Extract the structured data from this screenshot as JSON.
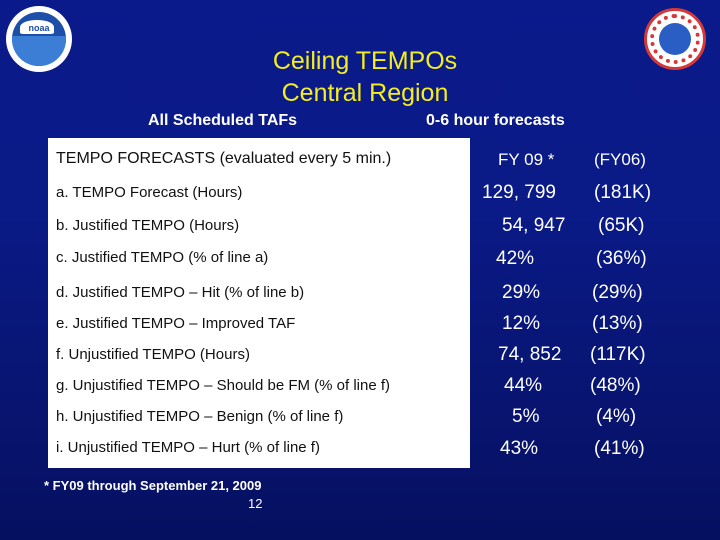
{
  "title": {
    "line1": "Ceiling TEMPOs",
    "line2": "Central Region"
  },
  "subtitle": {
    "left": "All Scheduled TAFs",
    "right": "0-6 hour forecasts"
  },
  "table": {
    "header": {
      "label": "TEMPO FORECASTS (evaluated every 5 min.)",
      "col1": "FY 09 *",
      "col2": "(FY06)"
    },
    "rows": [
      {
        "label": "a.  TEMPO Forecast (Hours)",
        "col1": "129, 799",
        "col2": "(181K)"
      },
      {
        "label": "b.  Justified TEMPO (Hours)",
        "col1": "54, 947",
        "col2": "(65K)"
      },
      {
        "label": "c.  Justified TEMPO (% of line a)",
        "col1": "42%",
        "col2": "(36%)"
      },
      {
        "label": "d.  Justified TEMPO – Hit (% of line b)",
        "col1": "29%",
        "col2": "(29%)"
      },
      {
        "label": "e.  Justified TEMPO – Improved TAF",
        "col1": "12%",
        "col2": "(13%)"
      },
      {
        "label": "f.  Unjustified TEMPO   (Hours)",
        "col1": "74, 852",
        "col2": "(117K)"
      },
      {
        "label": "g.  Unjustified TEMPO – Should be FM  (% of line f)",
        "col1": "44%",
        "col2": "(48%)"
      },
      {
        "label": "h.  Unjustified TEMPO – Benign  (% of line f)",
        "col1": "5%",
        "col2": "(4%)"
      },
      {
        "label": "i.  Unjustified TEMPO – Hurt  (% of  line f)",
        "col1": "43%",
        "col2": "(41%)"
      }
    ]
  },
  "footnote": "*   FY09 through September 21, 2009",
  "page_number": "12",
  "logos": {
    "left": "noaa",
    "right": "nws"
  }
}
